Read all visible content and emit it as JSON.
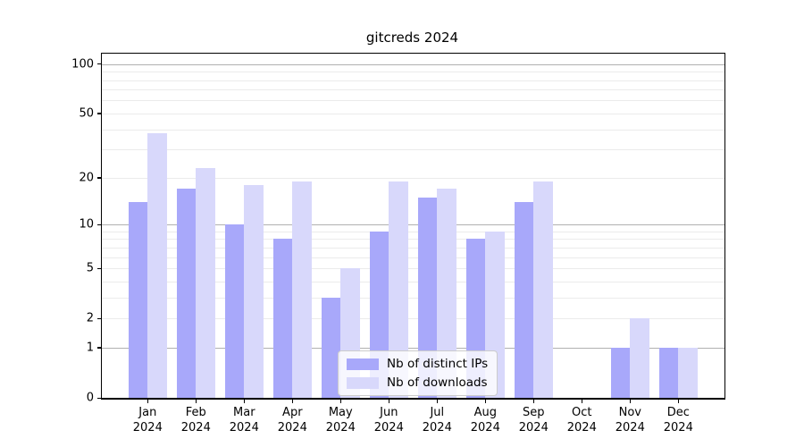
{
  "chart_data": {
    "type": "bar",
    "title": "gitcreds 2024",
    "categories": [
      "Jan 2024",
      "Feb 2024",
      "Mar 2024",
      "Apr 2024",
      "May 2024",
      "Jun 2024",
      "Jul 2024",
      "Aug 2024",
      "Sep 2024",
      "Oct 2024",
      "Nov 2024",
      "Dec 2024"
    ],
    "series": [
      {
        "name": "Nb of distinct IPs",
        "color": "#a8a8fa",
        "values": [
          14,
          17,
          10,
          8,
          3,
          9,
          15,
          8,
          14,
          0,
          1,
          1
        ]
      },
      {
        "name": "Nb of downloads",
        "color": "#d8d8fb",
        "values": [
          38,
          23,
          18,
          19,
          5,
          19,
          17,
          9,
          19,
          0,
          2,
          1
        ]
      }
    ],
    "xlabel": "",
    "ylabel": "",
    "yscale": "log1p",
    "ylim": [
      0,
      112
    ],
    "yticks": [
      0,
      1,
      2,
      5,
      10,
      20,
      50,
      100
    ],
    "gridlines_major": [
      1,
      10,
      100
    ],
    "gridlines_minor": [
      2,
      3,
      4,
      5,
      6,
      7,
      8,
      9,
      20,
      30,
      40,
      50,
      60,
      70,
      80,
      90
    ],
    "grid": "on",
    "legend_position": "lower center"
  },
  "colors": {
    "bar_distinct_ips": "#a8a8fa",
    "bar_downloads": "#d8d8fb",
    "gridline_major": "#b0b0b0",
    "gridline_minor": "#ebebeb",
    "axis": "#000000",
    "background": "#ffffff"
  }
}
